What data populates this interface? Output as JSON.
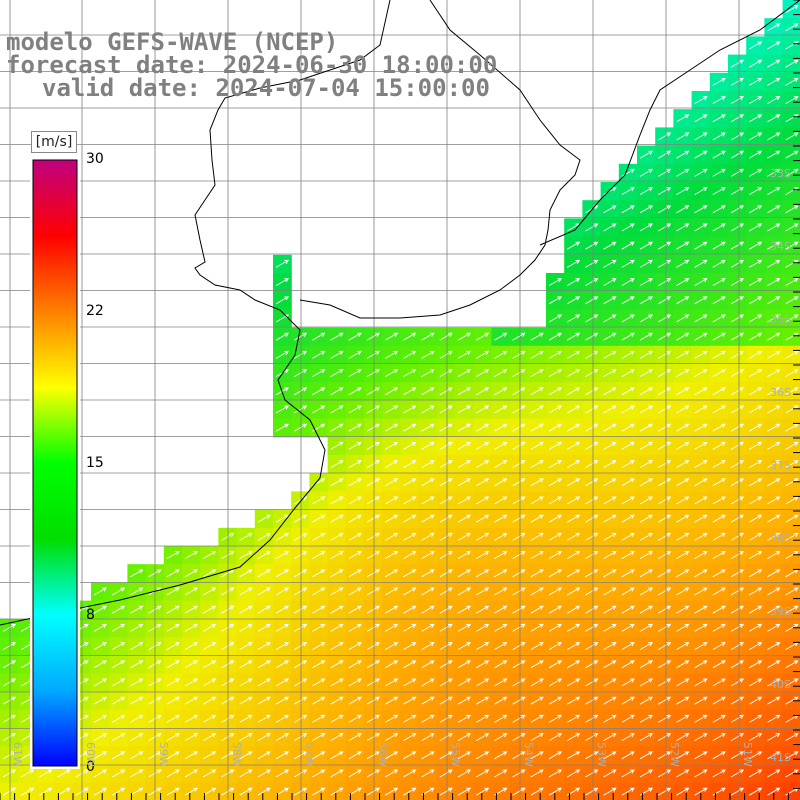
{
  "header": {
    "line1": "modelo GEFS-WAVE (NCEP)",
    "line2": "forecast date: 2024-06-30 18:00:00",
    "line3": "valid date: 2024-07-04 15:00:00"
  },
  "colorbar": {
    "unit": "[m/s]",
    "ticks": [
      "30",
      "22",
      "15",
      "8",
      "0"
    ],
    "colors": [
      "#0000ff",
      "#00aaff",
      "#00ffff",
      "#00dd00",
      "#00ff00",
      "#ffff00",
      "#ff8000",
      "#ff0000",
      "#c00080"
    ]
  },
  "map": {
    "lat_labels": [
      "33S",
      "34S",
      "35S",
      "36S",
      "37S",
      "38S",
      "39S",
      "40S",
      "41S"
    ],
    "lon_labels": [
      "61W",
      "60W",
      "59W",
      "58W",
      "57W",
      "56W",
      "55W",
      "54W",
      "53W",
      "52W",
      "51W"
    ],
    "land_color": "#ffffff",
    "grid_color": "#808080",
    "arrow_color": "#ffffff",
    "field": "wind speed",
    "wind_direction": "toward northeast"
  }
}
